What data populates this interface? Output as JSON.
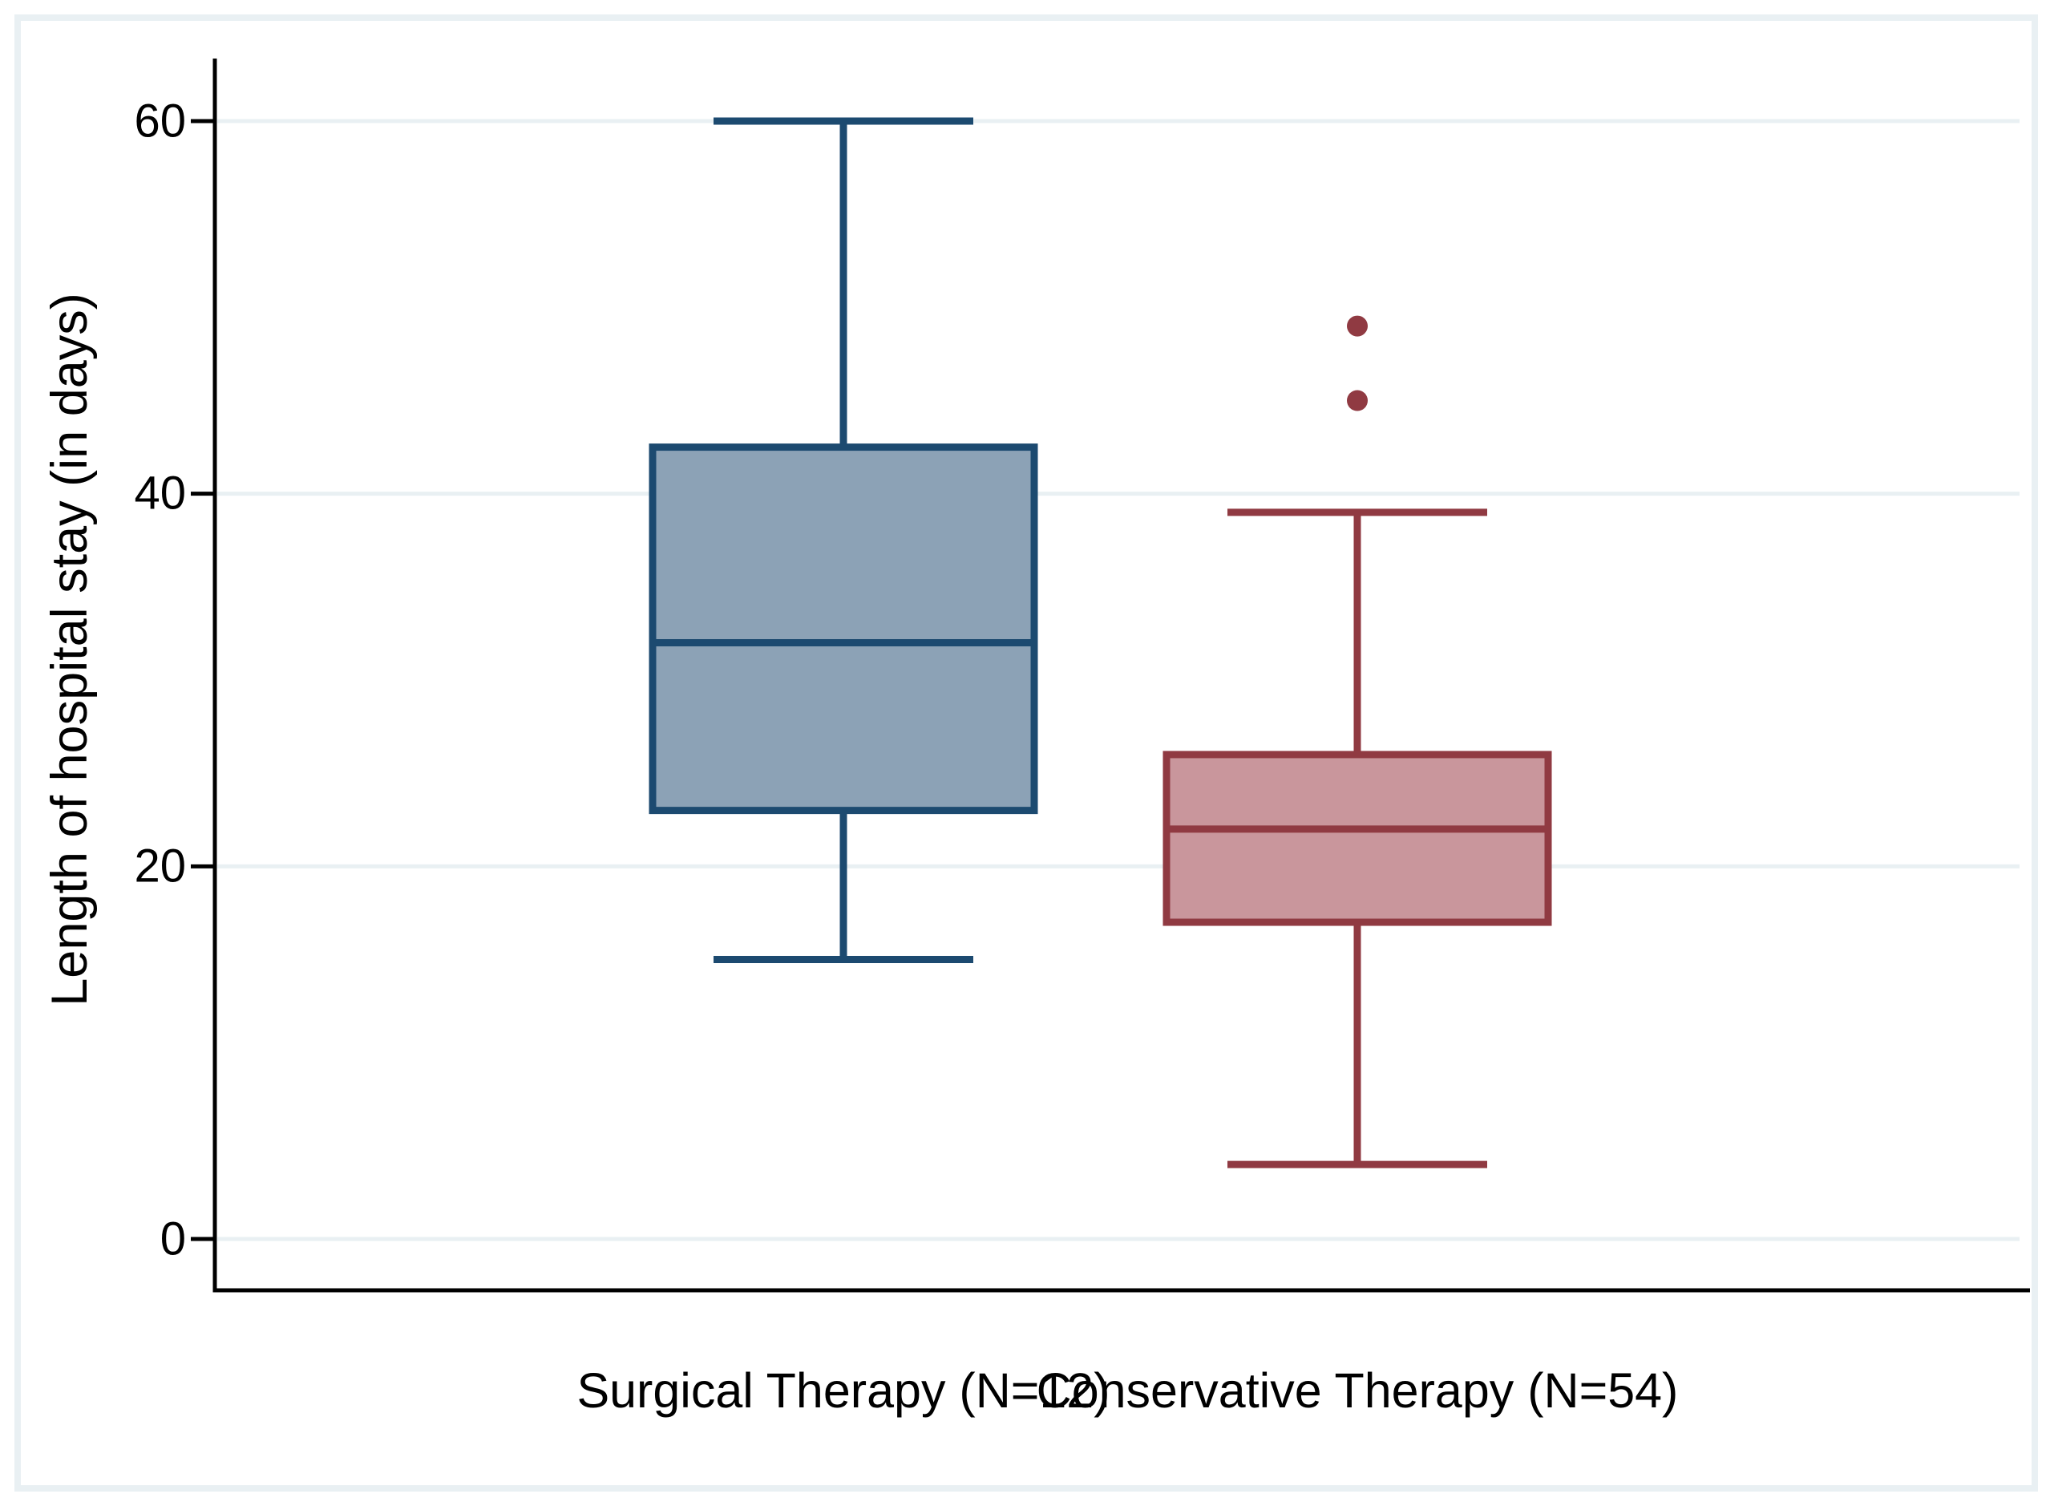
{
  "figure": {
    "ylabel": "Length of hospital stay (in days)"
  },
  "chart_data": {
    "type": "box",
    "title": "",
    "xlabel": "",
    "ylabel": "Length of hospital stay (in days)",
    "categories": [
      "Surgical Therapy (N=12)",
      "Conservative Therapy (N=54)"
    ],
    "yticks": [
      0,
      20,
      40,
      60
    ],
    "ylim": [
      -3,
      63
    ],
    "grid": "horizontal light gridlines at y ticks, legend off",
    "series": [
      {
        "name": "Surgical Therapy",
        "n": 12,
        "whisker_low": 15,
        "q1": 23,
        "median": 32,
        "q3": 42.5,
        "whisker_high": 60,
        "outliers": [],
        "fill": "#8CA2B6",
        "stroke": "#1C4A70"
      },
      {
        "name": "Conservative Therapy",
        "n": 54,
        "whisker_low": 4,
        "q1": 17,
        "median": 22,
        "q3": 26,
        "whisker_high": 39,
        "outliers": [
          45,
          49
        ],
        "fill": "#C9969C",
        "stroke": "#903A42"
      }
    ]
  },
  "colors": {
    "background": "#FFFFFF",
    "frame": "#E9F0F3",
    "grid": "#E9F0F3",
    "axis": "#000000",
    "text": "#000000"
  }
}
